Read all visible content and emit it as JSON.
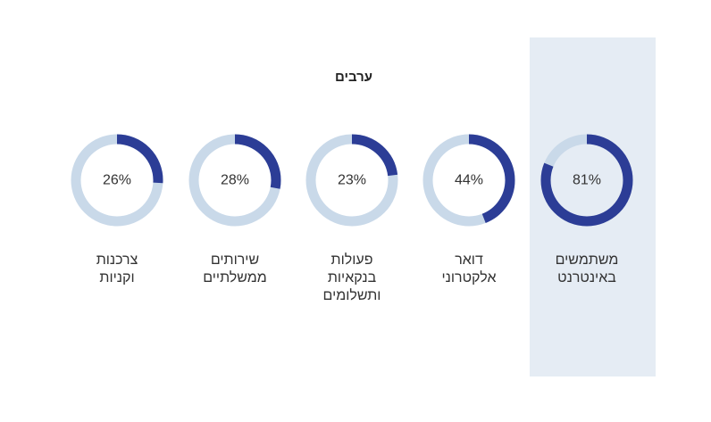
{
  "chart_data": {
    "type": "donut",
    "title": "ערבים",
    "items": [
      {
        "label": "משתמשים\nבאינטרנט",
        "value": 81,
        "display": "81%",
        "highlight": true
      },
      {
        "label": "דואר\nאלקטרוני",
        "value": 44,
        "display": "44%",
        "highlight": false
      },
      {
        "label": "פעולות\nבנקאיות\nותשלומים",
        "value": 23,
        "display": "23%",
        "highlight": false
      },
      {
        "label": "שירותים\nממשלתיים",
        "value": 28,
        "display": "28%",
        "highlight": false
      },
      {
        "label": "צרכנות\nוקניות",
        "value": 26,
        "display": "26%",
        "highlight": false
      }
    ],
    "max": 100
  },
  "colors": {
    "filled": "#2c3d96",
    "track": "#c9d9e9",
    "highlight_bg": "#e5ecf4"
  }
}
